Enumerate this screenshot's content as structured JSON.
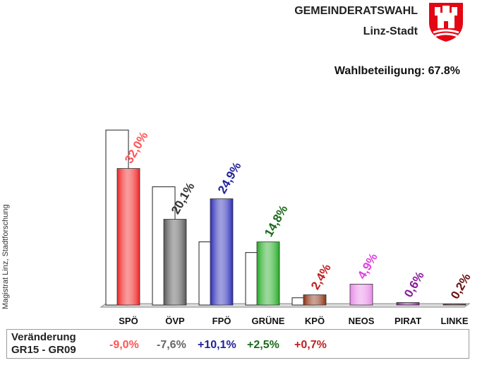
{
  "header": {
    "title": "GEMEINDERATSWAHL",
    "subtitle": "Linz-Stadt",
    "turnout": "Wahlbeteiligung: 67.8%"
  },
  "source_note": "Magistrat Linz, Stadtforschung",
  "change_table": {
    "label_line1": "Veränderung",
    "label_line2": "GR15 - GR09",
    "values": [
      {
        "party": "SPÖ",
        "text": "-9,0%",
        "color": "#ff5555"
      },
      {
        "party": "ÖVP",
        "text": "-7,6%",
        "color": "#666666"
      },
      {
        "party": "FPÖ",
        "text": "+10,1%",
        "color": "#22229a"
      },
      {
        "party": "GRÜNE",
        "text": "+2,5%",
        "color": "#1a6a1a"
      },
      {
        "party": "KPÖ",
        "text": "+0,7%",
        "color": "#c02020"
      }
    ]
  },
  "chart_data": {
    "type": "bar",
    "categories": [
      "SPÖ",
      "ÖVP",
      "FPÖ",
      "GRÜNE",
      "KPÖ",
      "NEOS",
      "PIRAT",
      "LINKE"
    ],
    "series": [
      {
        "values": [
          41.0,
          27.7,
          14.8,
          12.3,
          1.7,
          null,
          null,
          null
        ],
        "style": "outline"
      },
      {
        "values": [
          32.0,
          20.1,
          24.9,
          14.8,
          2.4,
          4.9,
          0.6,
          0.2
        ],
        "style": "filled"
      }
    ],
    "value_labels": [
      "32,0%",
      "20,1%",
      "24,9%",
      "14,8%",
      "2,4%",
      "4,9%",
      "0,6%",
      "0,2%"
    ],
    "colors": [
      "#ee2222",
      "#555555",
      "#2a2ab8",
      "#22aa22",
      "#8b2f10",
      "#e88ae8",
      "#8a1a9a",
      "#6a1010"
    ],
    "label_colors": [
      "#ff5555",
      "#333333",
      "#22229a",
      "#1a6a1a",
      "#c02020",
      "#e040e0",
      "#8a1a9a",
      "#6a1010"
    ],
    "ylim": [
      0,
      45
    ],
    "grid": false
  }
}
